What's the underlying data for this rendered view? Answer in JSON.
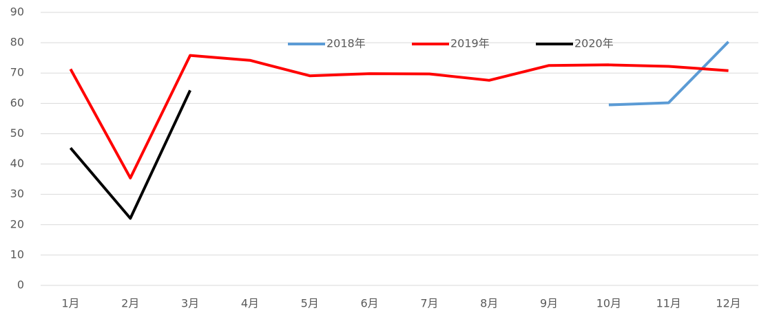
{
  "chart_data": {
    "type": "line",
    "categories": [
      "1月",
      "2月",
      "3月",
      "4月",
      "5月",
      "6月",
      "7月",
      "8月",
      "9月",
      "10月",
      "11月",
      "12月"
    ],
    "series": [
      {
        "name": "2018年",
        "color": "#5b9bd5",
        "values": [
          null,
          null,
          null,
          null,
          null,
          null,
          null,
          null,
          null,
          59.5,
          60.2,
          80.3
        ]
      },
      {
        "name": "2019年",
        "color": "#ff0000",
        "values": [
          71.3,
          35.4,
          75.8,
          74.2,
          69.1,
          69.8,
          69.7,
          67.6,
          72.5,
          72.7,
          72.2,
          70.8
        ]
      },
      {
        "name": "2020年",
        "color": "#000000",
        "values": [
          45.3,
          22.1,
          64.3,
          null,
          null,
          null,
          null,
          null,
          null,
          null,
          null,
          null
        ]
      }
    ],
    "ylim": [
      0,
      90
    ],
    "yticks": [
      0,
      10,
      20,
      30,
      40,
      50,
      60,
      70,
      80,
      90
    ],
    "grid": true,
    "legend": "top"
  }
}
